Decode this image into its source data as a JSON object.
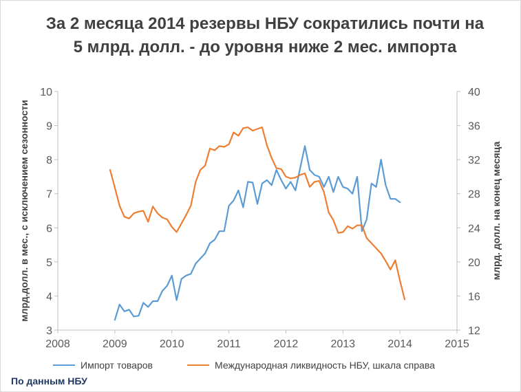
{
  "chart_data": {
    "type": "line",
    "title": "За 2 месяца 2014 резервы НБУ сократились почти на 5 млрд. долл. - до уровня ниже 2 мес. импорта",
    "ylabel": "млрд.долл. в мес., с исключением сезонности",
    "y2label": "млрд. долл. на конец месяца",
    "xlim": [
      2008,
      2015
    ],
    "ylim": [
      3,
      10
    ],
    "y2lim": [
      12,
      40
    ],
    "x_ticks": [
      "2008",
      "2009",
      "2010",
      "2011",
      "2012",
      "2013",
      "2014",
      "2015"
    ],
    "y_ticks": [
      "3",
      "4",
      "5",
      "6",
      "7",
      "8",
      "9",
      "10"
    ],
    "y2_ticks": [
      "12",
      "16",
      "20",
      "24",
      "28",
      "32",
      "36",
      "40"
    ],
    "grid": false,
    "legend_position": "bottom",
    "series": [
      {
        "name": "Импорт товаров",
        "axis": "left",
        "color": "#5b9bd5",
        "x": [
          2009.0,
          2009.083,
          2009.167,
          2009.25,
          2009.333,
          2009.417,
          2009.5,
          2009.583,
          2009.667,
          2009.75,
          2009.833,
          2009.917,
          2010.0,
          2010.083,
          2010.167,
          2010.25,
          2010.333,
          2010.417,
          2010.5,
          2010.583,
          2010.667,
          2010.75,
          2010.833,
          2010.917,
          2011.0,
          2011.083,
          2011.167,
          2011.25,
          2011.333,
          2011.417,
          2011.5,
          2011.583,
          2011.667,
          2011.75,
          2011.833,
          2011.917,
          2012.0,
          2012.083,
          2012.167,
          2012.25,
          2012.333,
          2012.417,
          2012.5,
          2012.583,
          2012.667,
          2012.75,
          2012.833,
          2012.917,
          2013.0,
          2013.083,
          2013.167,
          2013.25,
          2013.333,
          2013.417,
          2013.5,
          2013.583,
          2013.667,
          2013.75,
          2013.833,
          2013.917,
          2014.0,
          2014.083
        ],
        "values": [
          3.3,
          3.75,
          3.55,
          3.6,
          3.4,
          3.42,
          3.8,
          3.68,
          3.85,
          3.85,
          4.15,
          4.3,
          4.6,
          3.88,
          4.5,
          4.6,
          4.65,
          4.95,
          5.1,
          5.25,
          5.55,
          5.65,
          5.9,
          5.9,
          6.65,
          6.8,
          7.1,
          6.6,
          7.35,
          7.33,
          6.7,
          7.3,
          7.4,
          7.25,
          7.7,
          7.4,
          7.15,
          7.35,
          7.1,
          7.75,
          8.4,
          7.7,
          7.55,
          7.5,
          7.2,
          7.5,
          7.05,
          7.5,
          7.2,
          7.15,
          7.0,
          7.5,
          5.9,
          6.25,
          7.3,
          7.2,
          8.0,
          7.25,
          6.85,
          6.85,
          6.75,
          null
        ]
      },
      {
        "name": "Международная ликвидность НБУ, шкала справа",
        "axis": "right",
        "color": "#ed7d31",
        "x": [
          2008.917,
          2009.0,
          2009.083,
          2009.167,
          2009.25,
          2009.333,
          2009.417,
          2009.5,
          2009.583,
          2009.667,
          2009.75,
          2009.833,
          2009.917,
          2010.0,
          2010.083,
          2010.167,
          2010.25,
          2010.333,
          2010.417,
          2010.5,
          2010.583,
          2010.667,
          2010.75,
          2010.833,
          2010.917,
          2011.0,
          2011.083,
          2011.167,
          2011.25,
          2011.333,
          2011.417,
          2011.5,
          2011.583,
          2011.667,
          2011.75,
          2011.833,
          2011.917,
          2012.0,
          2012.083,
          2012.167,
          2012.25,
          2012.333,
          2012.417,
          2012.5,
          2012.583,
          2012.667,
          2012.75,
          2012.833,
          2012.917,
          2013.0,
          2013.083,
          2013.167,
          2013.25,
          2013.333,
          2013.417,
          2013.5,
          2013.583,
          2013.667,
          2013.75,
          2013.833,
          2013.917,
          2014.0,
          2014.083,
          2014.167
        ],
        "values": [
          30.8,
          28.7,
          26.6,
          25.3,
          25.1,
          25.7,
          25.9,
          26.0,
          24.7,
          26.5,
          25.7,
          25.2,
          25.0,
          24.1,
          23.5,
          24.5,
          25.5,
          26.6,
          29.4,
          30.8,
          31.3,
          33.3,
          33.1,
          33.6,
          33.5,
          33.8,
          35.2,
          34.8,
          35.7,
          35.8,
          35.4,
          35.6,
          35.8,
          33.7,
          32.2,
          31.0,
          30.9,
          30.0,
          29.8,
          29.9,
          30.2,
          30.4,
          28.8,
          29.4,
          29.5,
          28.2,
          25.8,
          24.9,
          23.4,
          23.5,
          24.2,
          23.9,
          24.3,
          24.3,
          22.8,
          22.2,
          21.6,
          21.0,
          20.1,
          19.1,
          20.2,
          17.8,
          15.6,
          null
        ]
      }
    ]
  },
  "legend": {
    "series1_label": "Импорт товаров",
    "series2_label": "Международная ликвидность НБУ, шкала справа"
  },
  "source_note": "По данным НБУ"
}
